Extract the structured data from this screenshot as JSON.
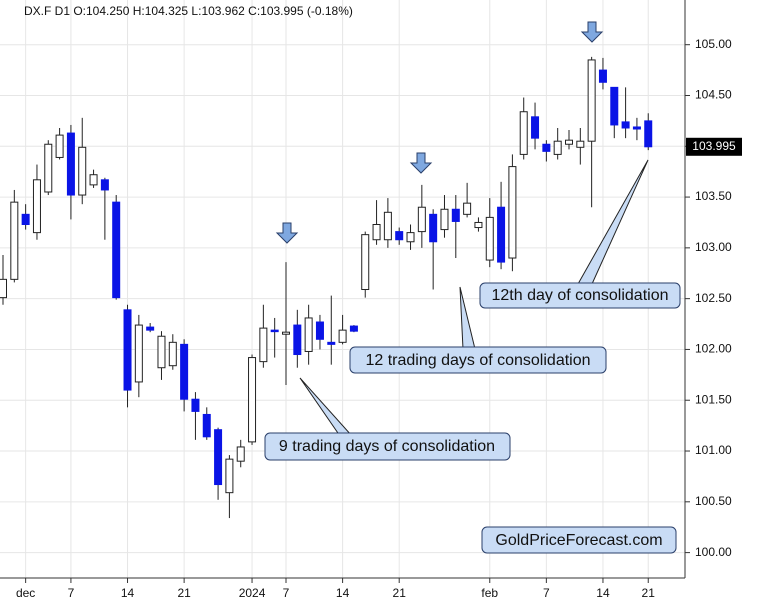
{
  "chart_data": {
    "type": "candlestick",
    "header": "DX.F  D1  O:104.250  H:104.325  L:103.962  C:103.995  (-0.18%)",
    "categories": [
      null,
      null,
      "dec",
      null,
      null,
      null,
      "7",
      null,
      null,
      null,
      null,
      "14",
      null,
      null,
      null,
      null,
      "21",
      null,
      null,
      null,
      null,
      null,
      "2024",
      null,
      null,
      "7",
      null,
      null,
      null,
      null,
      "14",
      null,
      null,
      null,
      null,
      "21",
      null,
      null,
      null,
      null,
      null,
      null,
      null,
      "feb",
      null,
      null,
      null,
      null,
      "7",
      null,
      null,
      null,
      null,
      "14",
      null,
      null,
      null,
      "21"
    ],
    "open": [
      102.51,
      102.69,
      103.33,
      103.15,
      103.55,
      103.89,
      104.13,
      103.52,
      103.62,
      103.67,
      103.45,
      102.39,
      101.68,
      102.22,
      101.82,
      101.84,
      102.05,
      101.51,
      101.36,
      101.21,
      100.59,
      100.9,
      101.09,
      101.88,
      102.19,
      102.15,
      102.24,
      101.98,
      102.27,
      102.07,
      102.07,
      102.23,
      102.59,
      103.08,
      103.08,
      103.16,
      103.06,
      103.16,
      103.33,
      103.18,
      103.38,
      103.33,
      103.2,
      102.88,
      103.4,
      102.9,
      103.92,
      104.29,
      104.02,
      103.92,
      104.02,
      103.99,
      104.05,
      104.75,
      104.58,
      104.24,
      104.19,
      104.25
    ],
    "high": [
      102.93,
      103.57,
      103.43,
      103.82,
      104.06,
      104.18,
      104.21,
      104.28,
      103.77,
      103.69,
      103.52,
      102.44,
      102.34,
      102.26,
      102.18,
      102.15,
      102.1,
      101.58,
      101.43,
      101.23,
      100.96,
      101.11,
      101.95,
      102.44,
      102.31,
      102.86,
      102.39,
      102.44,
      102.34,
      102.53,
      102.34,
      102.24,
      103.16,
      103.47,
      103.49,
      103.2,
      103.23,
      103.62,
      103.38,
      103.52,
      103.52,
      103.64,
      103.3,
      103.49,
      103.65,
      103.92,
      104.48,
      104.43,
      104.06,
      104.18,
      104.16,
      104.18,
      104.88,
      104.87,
      104.58,
      104.58,
      104.28,
      104.325
    ],
    "low": [
      102.44,
      102.66,
      103.18,
      103.08,
      103.52,
      103.87,
      103.28,
      103.43,
      103.59,
      103.08,
      102.49,
      101.43,
      101.53,
      102.17,
      101.7,
      101.8,
      101.39,
      101.11,
      101.11,
      100.52,
      100.34,
      100.84,
      101.06,
      101.82,
      101.92,
      101.65,
      101.82,
      101.85,
      102.0,
      101.85,
      102.05,
      102.17,
      102.51,
      103.03,
      103.0,
      103.03,
      102.98,
      103.0,
      102.59,
      103.1,
      102.9,
      103.3,
      103.16,
      102.81,
      102.79,
      102.77,
      103.87,
      103.97,
      103.85,
      103.87,
      103.97,
      103.82,
      103.4,
      104.56,
      104.08,
      104.08,
      104.06,
      103.962
    ],
    "close": [
      102.69,
      103.45,
      103.23,
      103.67,
      104.02,
      104.11,
      103.52,
      103.99,
      103.72,
      103.57,
      102.51,
      101.6,
      102.24,
      102.19,
      102.13,
      102.07,
      101.51,
      101.39,
      101.14,
      100.67,
      100.92,
      101.04,
      101.92,
      102.21,
      102.18,
      102.17,
      101.95,
      102.31,
      102.1,
      102.05,
      102.19,
      102.18,
      103.13,
      103.23,
      103.35,
      103.08,
      103.15,
      103.4,
      103.06,
      103.38,
      103.26,
      103.44,
      103.25,
      103.3,
      102.86,
      103.8,
      104.34,
      104.08,
      103.95,
      104.05,
      104.06,
      104.05,
      104.85,
      104.63,
      104.21,
      104.18,
      104.17,
      103.995
    ],
    "up_color": "#ffffff",
    "down_color": "#0a14e6",
    "ylim": [
      99.75,
      105.44
    ],
    "yticks": [
      {
        "value": 100,
        "label": "100.00"
      },
      {
        "value": 100.5,
        "label": "100.50"
      },
      {
        "value": 101,
        "label": "101.00"
      },
      {
        "value": 101.5,
        "label": "101.50"
      },
      {
        "value": 102,
        "label": "102.00"
      },
      {
        "value": 102.5,
        "label": "102.50"
      },
      {
        "value": 103,
        "label": "103.00"
      },
      {
        "value": 103.5,
        "label": "103.50"
      },
      {
        "value": 104,
        "label": "104.00"
      },
      {
        "value": 104.5,
        "label": "104.50"
      },
      {
        "value": 105,
        "label": "105.00"
      }
    ],
    "last_price": 103.995,
    "grid": true,
    "annotations": [
      "9 trading days of consolidation",
      "12 trading days of consolidation",
      "12th day of consolidation"
    ],
    "watermark": "GoldPriceForecast.com"
  }
}
